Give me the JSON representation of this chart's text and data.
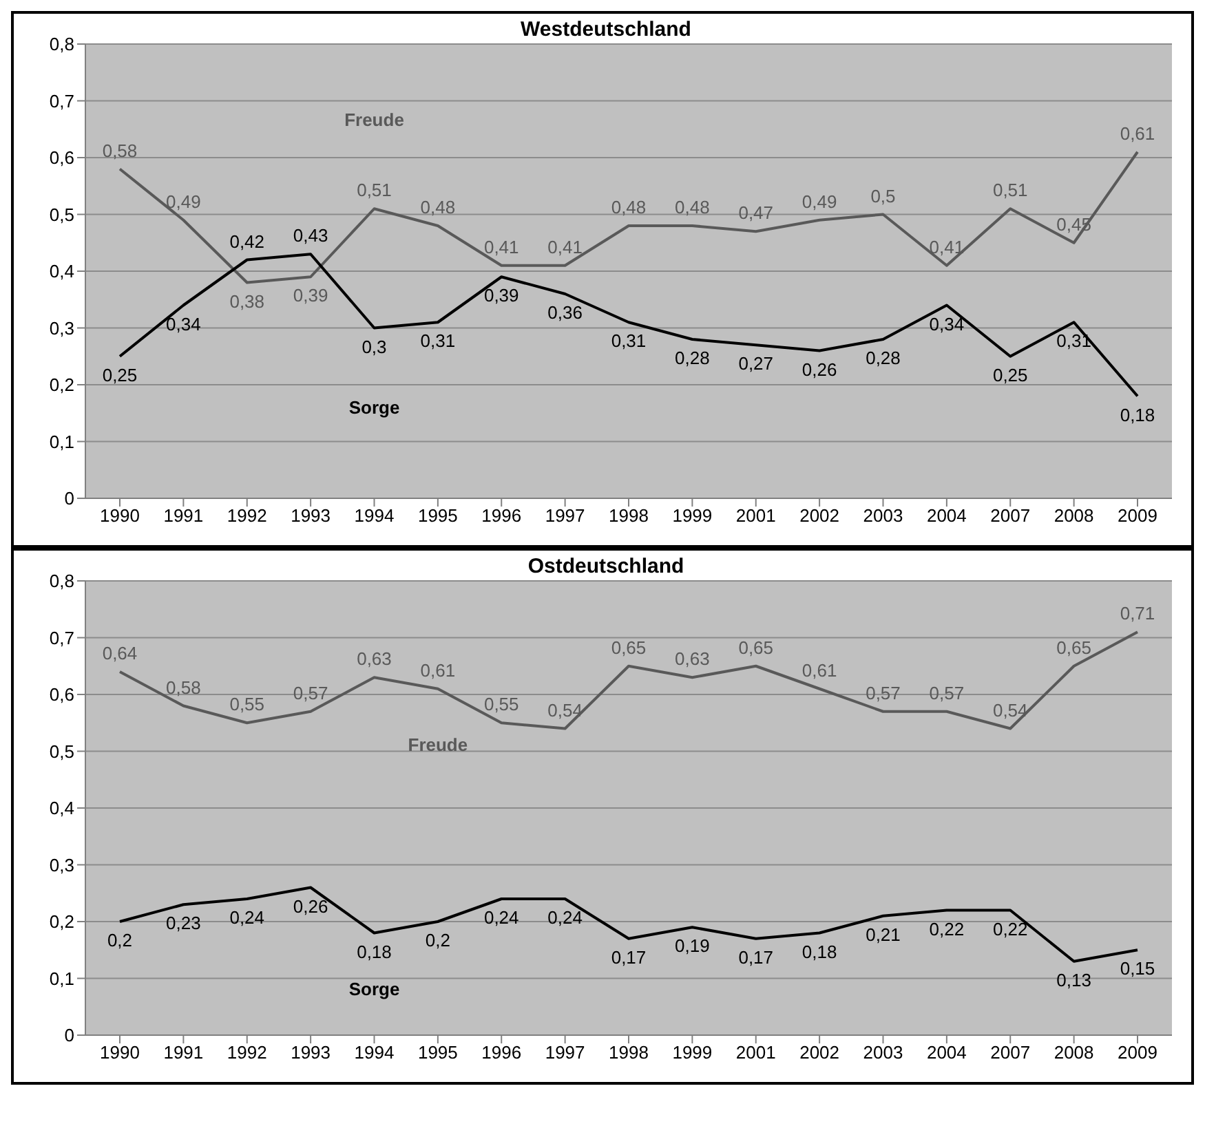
{
  "chart_data": [
    {
      "type": "line",
      "title": "Westdeutschland",
      "categories": [
        "1990",
        "1991",
        "1992",
        "1993",
        "1994",
        "1995",
        "1996",
        "1997",
        "1998",
        "1999",
        "2001",
        "2002",
        "2003",
        "2004",
        "2007",
        "2008",
        "2009"
      ],
      "series": [
        {
          "name": "Freude",
          "color": "#595959",
          "values": [
            0.58,
            0.49,
            0.38,
            0.39,
            0.51,
            0.48,
            0.41,
            0.41,
            0.48,
            0.48,
            0.47,
            0.49,
            0.5,
            0.41,
            0.51,
            0.45,
            0.61
          ],
          "value_labels": [
            "0,58",
            "0,49",
            "0,38",
            "0,39",
            "0,51",
            "0,48",
            "0,41",
            "0,41",
            "0,48",
            "0,48",
            "0,47",
            "0,49",
            "0,5",
            "0,41",
            "0,51",
            "0,45",
            "0,61"
          ]
        },
        {
          "name": "Sorge",
          "color": "#000000",
          "values": [
            0.25,
            0.34,
            0.42,
            0.43,
            0.3,
            0.31,
            0.39,
            0.36,
            0.31,
            0.28,
            0.27,
            0.26,
            0.28,
            0.34,
            0.25,
            0.31,
            0.18
          ],
          "value_labels": [
            "0,25",
            "0,34",
            "0,42",
            "0,43",
            "0,3",
            "0,31",
            "0,39",
            "0,36",
            "0,31",
            "0,28",
            "0,27",
            "0,26",
            "0,28",
            "0,34",
            "0,25",
            "0,31",
            "0,18"
          ]
        }
      ],
      "ylim": [
        0,
        0.8
      ],
      "yticks": [
        0,
        {
          "value": 0.1,
          "label": "0,1"
        },
        {
          "value": 0.2,
          "label": "0,2"
        },
        {
          "value": 0.3,
          "label": "0,3"
        },
        {
          "value": 0.4,
          "label": "0,4"
        },
        {
          "value": 0.5,
          "label": "0,5"
        },
        {
          "value": 0.6,
          "label": "0,6"
        },
        {
          "value": 0.7,
          "label": "0,7"
        },
        {
          "value": 0.8,
          "label": "0,8"
        }
      ],
      "grid": "y",
      "legend": false,
      "marker": "none",
      "line_style": "solid"
    },
    {
      "type": "line",
      "title": "Ostdeutschland",
      "categories": [
        "1990",
        "1991",
        "1992",
        "1993",
        "1994",
        "1995",
        "1996",
        "1997",
        "1998",
        "1999",
        "2001",
        "2002",
        "2003",
        "2004",
        "2007",
        "2008",
        "2009"
      ],
      "series": [
        {
          "name": "Freude",
          "color": "#595959",
          "values": [
            0.64,
            0.58,
            0.55,
            0.57,
            0.63,
            0.61,
            0.55,
            0.54,
            0.65,
            0.63,
            0.65,
            0.61,
            0.57,
            0.57,
            0.54,
            0.65,
            0.71
          ],
          "value_labels": [
            "0,64",
            "0,58",
            "0,55",
            "0,57",
            "0,63",
            "0,61",
            "0,55",
            "0,54",
            "0,65",
            "0,63",
            "0,65",
            "0,61",
            "0,57",
            "0,57",
            "0,54",
            "0,65",
            "0,71"
          ]
        },
        {
          "name": "Sorge",
          "color": "#000000",
          "values": [
            0.2,
            0.23,
            0.24,
            0.26,
            0.18,
            0.2,
            0.24,
            0.24,
            0.17,
            0.19,
            0.17,
            0.18,
            0.21,
            0.22,
            0.22,
            0.13,
            0.15
          ],
          "value_labels": [
            "0,2",
            "0,23",
            "0,24",
            "0,26",
            "0,18",
            "0,2",
            "0,24",
            "0,24",
            "0,17",
            "0,19",
            "0,17",
            "0,18",
            "0,21",
            "0,22",
            "0,22",
            "0,13",
            "0,15"
          ]
        }
      ],
      "ylim": [
        0,
        0.8
      ],
      "yticks": [
        0,
        {
          "value": 0.1,
          "label": "0,1"
        },
        {
          "value": 0.2,
          "label": "0,2"
        },
        {
          "value": 0.3,
          "label": "0,3"
        },
        {
          "value": 0.4,
          "label": "0,4"
        },
        {
          "value": 0.5,
          "label": "0,5"
        },
        {
          "value": 0.6,
          "label": "0,6"
        },
        {
          "value": 0.7,
          "label": "0,7"
        },
        {
          "value": 0.8,
          "label": "0,8"
        }
      ],
      "grid": "y",
      "legend": false,
      "marker": "none",
      "line_style": "solid"
    }
  ]
}
